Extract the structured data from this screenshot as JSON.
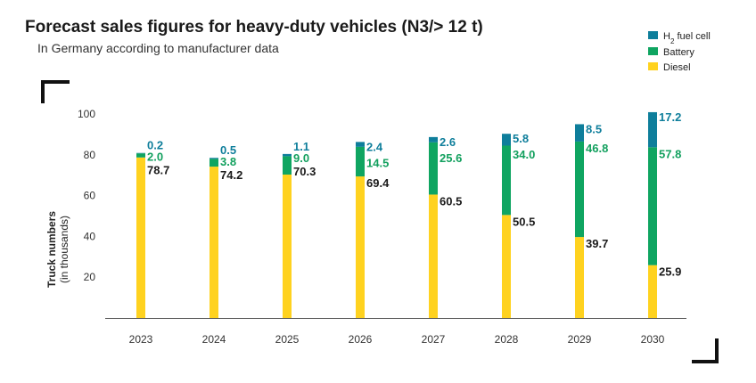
{
  "chart_data": {
    "type": "bar",
    "stacked": true,
    "title": "Forecast sales figures for heavy-duty vehicles (N3/> 12 t)",
    "subtitle": "In Germany according to manufacturer data",
    "ylabel": "Truck numbers",
    "ylabel_sub": "(in thousands)",
    "ylim": [
      0,
      100
    ],
    "yticks": [
      20,
      40,
      60,
      80,
      100
    ],
    "grid": false,
    "legend_position": "top-right",
    "categories": [
      "2023",
      "2024",
      "2025",
      "2026",
      "2027",
      "2028",
      "2029",
      "2030"
    ],
    "series": [
      {
        "key": "diesel",
        "name": "Diesel",
        "color": "#FFD21F",
        "label_color": "#1a1a1a",
        "values": [
          78.7,
          74.2,
          70.3,
          69.4,
          60.5,
          50.5,
          39.7,
          25.9
        ]
      },
      {
        "key": "battery",
        "name": "Battery",
        "color": "#0FA561",
        "label_color": "#12A05E",
        "values": [
          2.0,
          3.8,
          9.0,
          14.5,
          25.6,
          34.0,
          46.8,
          57.8
        ]
      },
      {
        "key": "h2",
        "name": "H₂ fuel cell",
        "color": "#0E7E9B",
        "label_color": "#0E7E9B",
        "values": [
          0.2,
          0.5,
          1.1,
          2.4,
          2.6,
          5.8,
          8.5,
          17.2
        ]
      }
    ],
    "value_labels": {
      "diesel": [
        "78.7",
        "74.2",
        "70.3",
        "69.4",
        "60.5",
        "50.5",
        "39.7",
        "25.9"
      ],
      "battery": [
        "2.0",
        "3.8",
        "9.0",
        "14.5",
        "25.6",
        "34.0",
        "46.8",
        "57.8"
      ],
      "h2": [
        "0.2",
        "0.5",
        "1.1",
        "2.4",
        "2.6",
        "5.8",
        "8.5",
        "17.2"
      ]
    },
    "legend": [
      {
        "name": "H",
        "sub": "2",
        "rest": " fuel cell",
        "color": "#0E7E9B"
      },
      {
        "name": "Battery",
        "color": "#0FA561"
      },
      {
        "name": "Diesel",
        "color": "#FFD21F"
      }
    ]
  }
}
